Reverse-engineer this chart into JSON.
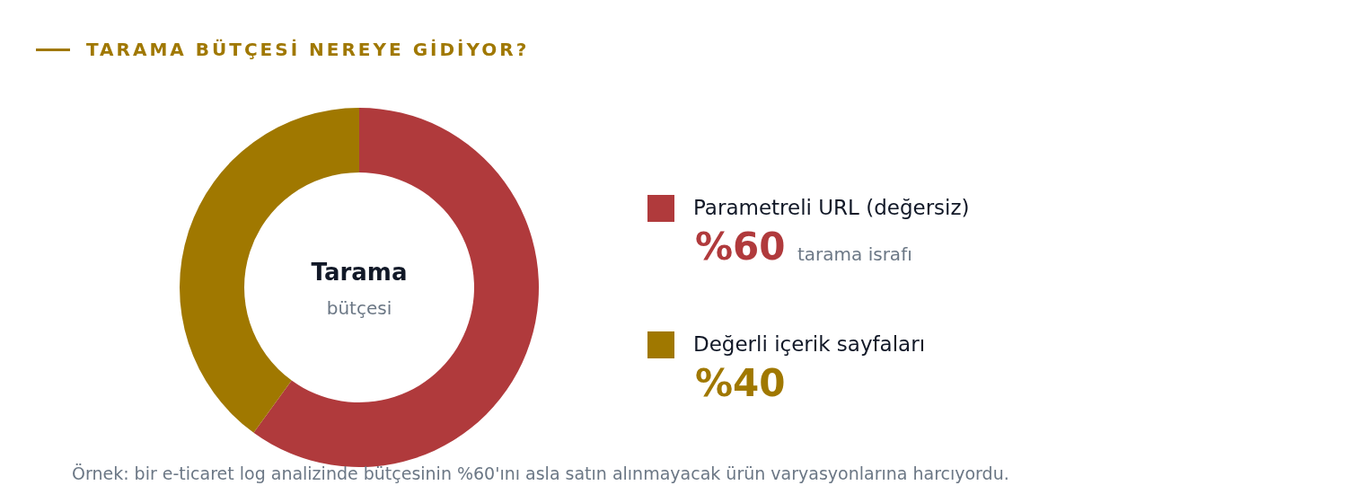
{
  "chart_data": {
    "type": "donut",
    "title": "TARAMA BÜTÇESİ NEREYE GİDİYOR?",
    "categories": [
      "Parametreli URL (değersiz)",
      "Değerli içerik sayfaları"
    ],
    "values": [
      60,
      40
    ],
    "colors": [
      "#b03a3c",
      "#a07800"
    ],
    "value_labels": [
      "%60",
      "%40"
    ],
    "legend": "right",
    "annotations": [
      "Tarama",
      "bütçesi",
      "tarama israfı",
      "Örnek: bir e-ticaret log analizinde bütçesinin %60'ını asla satın alınmayacak ürün varyasyonlarına harcıyordu."
    ]
  }
}
